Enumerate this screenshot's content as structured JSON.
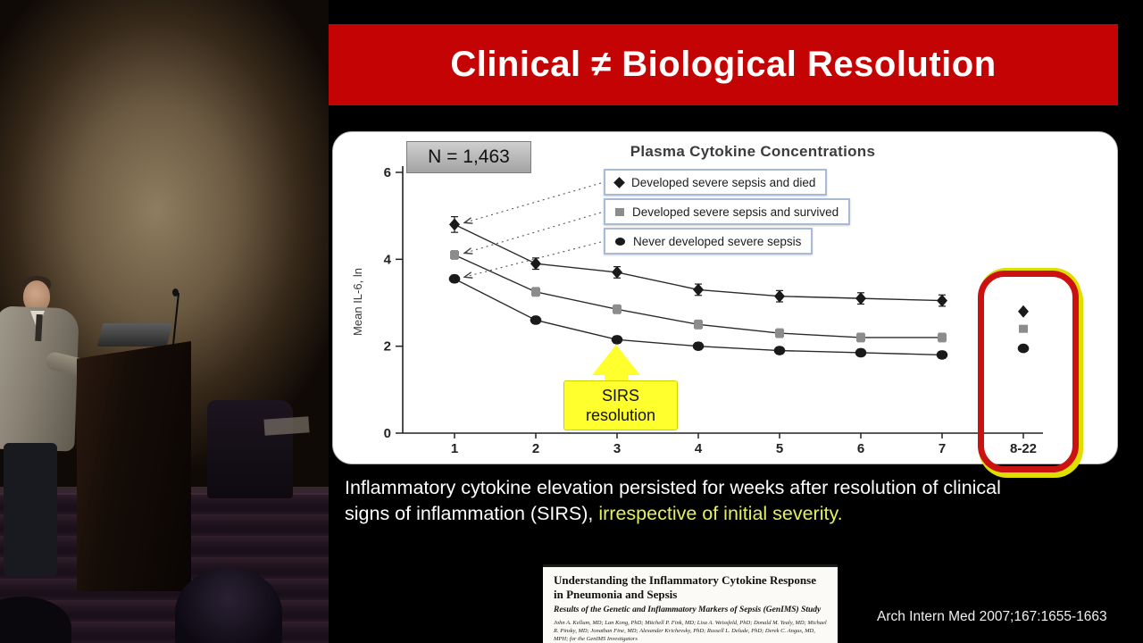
{
  "slide": {
    "title": "Clinical ≠ Biological Resolution",
    "caption_line1": "Inflammatory cytokine elevation persisted for weeks after resolution of clinical",
    "caption_line2_white": "signs of inflammation (SIRS), ",
    "caption_line2_highlight": "irrespective of initial severity.",
    "reference": "Arch Intern Med 2007;167:1655-1663"
  },
  "paper_snippet": {
    "title": "Understanding the Inflammatory Cytokine Response in Pneumonia and Sepsis",
    "subtitle": "Results of the Genetic and Inflammatory Markers of Sepsis (GenIMS) Study",
    "authors": "John A. Kellum, MD; Lan Kong, PhD; Mitchell P. Fink, MD; Lisa A. Weissfeld, PhD; Donald M. Yealy, MD; Michael R. Pinsky, MD; Jonathan Fine, MD; Alexander Krichevsky, PhD; Russell L. Delude, PhD; Derek C. Angus, MD, MPH; for the GenIMS Investigators"
  },
  "chart_data": {
    "type": "line",
    "title": "Plasma Cytokine Concentrations",
    "n_label": "N = 1,463",
    "ylabel": "Mean IL-6, ln",
    "xlabel": "",
    "ylim": [
      0,
      6
    ],
    "y_ticks": [
      0,
      2,
      4,
      6
    ],
    "categories": [
      "1",
      "2",
      "3",
      "4",
      "5",
      "6",
      "7",
      "8-22"
    ],
    "grid": false,
    "legend_position": "top-center",
    "note": "Days 1-7 connected by lines; 8-22 follow-up points plotted separately inside red highlight box",
    "series": [
      {
        "name": "Developed severe sepsis and died",
        "marker": "diamond",
        "color": "#1a1a1a",
        "values": [
          4.8,
          3.9,
          3.7,
          3.3,
          3.15,
          3.1,
          3.05,
          2.8
        ],
        "errors": [
          0.18,
          0.13,
          0.13,
          0.13,
          0.13,
          0.13,
          0.13,
          0
        ]
      },
      {
        "name": "Developed severe sepsis and survived",
        "marker": "square",
        "color": "#8c8c8c",
        "values": [
          4.1,
          3.25,
          2.85,
          2.5,
          2.3,
          2.2,
          2.2,
          2.4
        ],
        "errors": [
          0.1,
          0.1,
          0.1,
          0.1,
          0.1,
          0.1,
          0.1,
          0
        ]
      },
      {
        "name": "Never developed severe sepsis",
        "marker": "circle",
        "color": "#1a1a1a",
        "values": [
          3.55,
          2.6,
          2.15,
          2.0,
          1.9,
          1.85,
          1.8,
          1.95
        ],
        "errors": [
          0.08,
          0.08,
          0.08,
          0.08,
          0.08,
          0.08,
          0.08,
          0
        ]
      }
    ],
    "annotation": {
      "line1": "SIRS",
      "line2": "resolution",
      "at_category": "3"
    },
    "highlighted_category": "8-22"
  },
  "colors": {
    "banner_red": "#c40404",
    "annotation_yellow": "#ffff2e",
    "caption_highlight": "#e4ef5e",
    "highlight_box_red": "#cc1111",
    "highlight_box_edge": "#dede00",
    "legend_border": "#a9bad6"
  }
}
